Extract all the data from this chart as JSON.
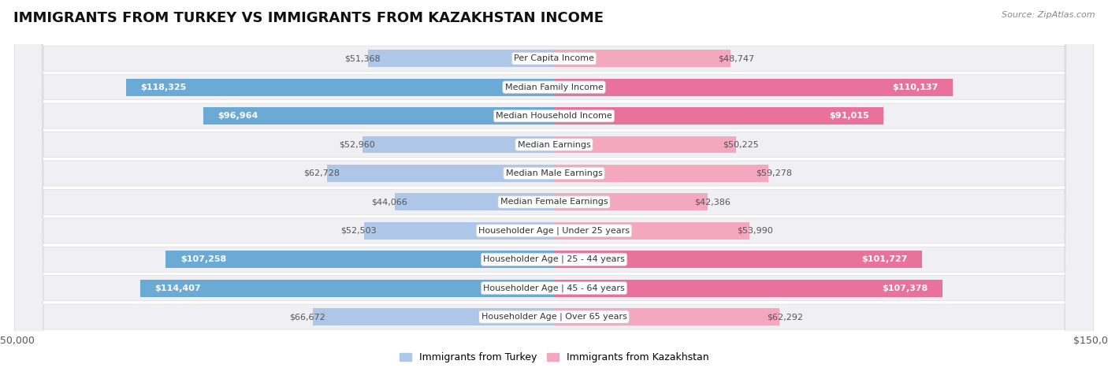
{
  "title": "IMMIGRANTS FROM TURKEY VS IMMIGRANTS FROM KAZAKHSTAN INCOME",
  "source": "Source: ZipAtlas.com",
  "categories": [
    "Per Capita Income",
    "Median Family Income",
    "Median Household Income",
    "Median Earnings",
    "Median Male Earnings",
    "Median Female Earnings",
    "Householder Age | Under 25 years",
    "Householder Age | 25 - 44 years",
    "Householder Age | 45 - 64 years",
    "Householder Age | Over 65 years"
  ],
  "turkey_values": [
    51368,
    118325,
    96964,
    52960,
    62728,
    44066,
    52503,
    107258,
    114407,
    66672
  ],
  "kazakhstan_values": [
    48747,
    110137,
    91015,
    50225,
    59278,
    42386,
    53990,
    101727,
    107378,
    62292
  ],
  "turkey_color_light": "#aec6e8",
  "turkey_color_dark": "#6aaad4",
  "kazakhstan_color_light": "#f4a8c0",
  "kazakhstan_color_dark": "#e8729a",
  "turkey_label": "Immigrants from Turkey",
  "kazakhstan_label": "Immigrants from Kazakhstan",
  "max_value": 150000,
  "row_bg_color": "#f0f0f4",
  "row_border_color": "#dddddd",
  "title_fontsize": 13,
  "source_fontsize": 8,
  "value_fontsize": 8,
  "cat_fontsize": 8,
  "legend_fontsize": 9,
  "turkey_highlight": [
    118325,
    96964,
    107258,
    114407
  ],
  "kazakhstan_highlight": [
    110137,
    91015,
    101727,
    107378
  ]
}
